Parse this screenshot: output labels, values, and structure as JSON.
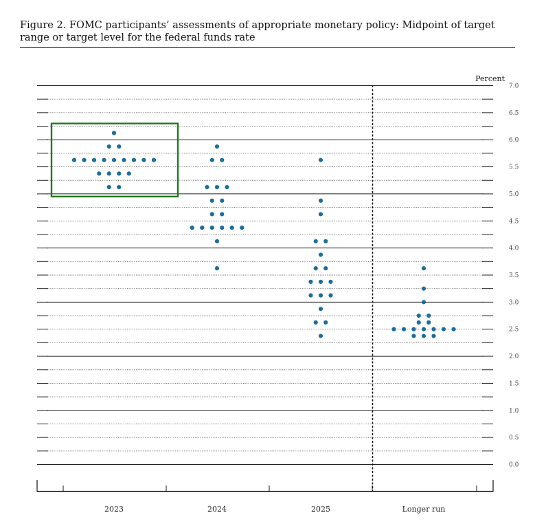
{
  "figure": {
    "title": "Figure 2.  FOMC participants’ assessments of appropriate monetary policy: Midpoint of target range or target level for the federal funds rate"
  },
  "chart_data": {
    "type": "scatter",
    "style": "dot plot",
    "unit_label": "Percent",
    "categories": [
      "2023",
      "2024",
      "2025",
      "Longer run"
    ],
    "ylim": [
      0,
      7
    ],
    "yticks": [
      "0.0",
      "0.5",
      "1.0",
      "1.5",
      "2.0",
      "2.5",
      "3.0",
      "3.5",
      "4.0",
      "4.5",
      "5.0",
      "5.5",
      "6.0",
      "6.5",
      "7.0"
    ],
    "dot_color": "#1a6e9b",
    "highlight_color": "#1e7a1e",
    "highlight": {
      "category": "2023",
      "y_range": [
        4.95,
        6.3
      ]
    },
    "series": [
      {
        "category": "2023",
        "points": [
          {
            "y": 6.125,
            "count": 1
          },
          {
            "y": 5.875,
            "count": 2
          },
          {
            "y": 5.625,
            "count": 9
          },
          {
            "y": 5.375,
            "count": 4
          },
          {
            "y": 5.125,
            "count": 2
          }
        ]
      },
      {
        "category": "2024",
        "points": [
          {
            "y": 5.875,
            "count": 1
          },
          {
            "y": 5.625,
            "count": 2
          },
          {
            "y": 5.125,
            "count": 3
          },
          {
            "y": 4.875,
            "count": 2
          },
          {
            "y": 4.625,
            "count": 2
          },
          {
            "y": 4.375,
            "count": 6
          },
          {
            "y": 4.125,
            "count": 1
          },
          {
            "y": 3.625,
            "count": 1
          }
        ]
      },
      {
        "category": "2025",
        "points": [
          {
            "y": 5.625,
            "count": 1
          },
          {
            "y": 4.875,
            "count": 1
          },
          {
            "y": 4.625,
            "count": 1
          },
          {
            "y": 4.125,
            "count": 2
          },
          {
            "y": 3.875,
            "count": 1
          },
          {
            "y": 3.625,
            "count": 2
          },
          {
            "y": 3.375,
            "count": 3
          },
          {
            "y": 3.125,
            "count": 3
          },
          {
            "y": 2.875,
            "count": 1
          },
          {
            "y": 2.625,
            "count": 2
          },
          {
            "y": 2.375,
            "count": 1
          }
        ]
      },
      {
        "category": "Longer run",
        "points": [
          {
            "y": 3.625,
            "count": 1
          },
          {
            "y": 3.25,
            "count": 1
          },
          {
            "y": 3.0,
            "count": 1
          },
          {
            "y": 2.75,
            "count": 2
          },
          {
            "y": 2.625,
            "count": 2
          },
          {
            "y": 2.5,
            "count": 7
          },
          {
            "y": 2.375,
            "count": 3
          }
        ]
      }
    ]
  }
}
